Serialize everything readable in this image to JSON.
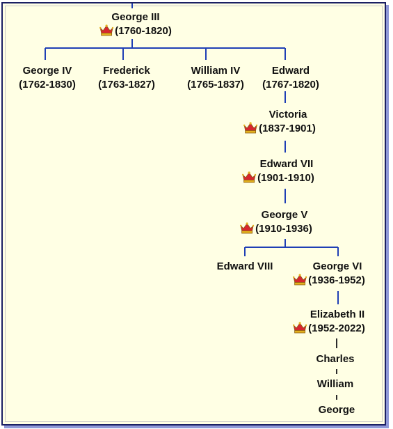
{
  "colors": {
    "background": "#ffffe4",
    "border": "#1a1f63",
    "shadow": "#8e98d8",
    "royal_line": "#1f3fb5",
    "succession_line": "#2b2b2b",
    "text": "#111111"
  },
  "legend_icon": "crown-icon",
  "people": {
    "george_iii": {
      "name": "George III",
      "dates": "(1760-1820)",
      "monarch": true
    },
    "george_iv": {
      "name": "George IV",
      "dates": "(1762-1830)",
      "monarch": false
    },
    "frederick": {
      "name": "Frederick",
      "dates": "(1763-1827)",
      "monarch": false
    },
    "william_iv": {
      "name": "William IV",
      "dates": "(1765-1837)",
      "monarch": false
    },
    "edward": {
      "name": "Edward",
      "dates": "(1767-1820)",
      "monarch": false
    },
    "victoria": {
      "name": "Victoria",
      "dates": "(1837-1901)",
      "monarch": true
    },
    "edward_vii": {
      "name": "Edward VII",
      "dates": "(1901-1910)",
      "monarch": true
    },
    "george_v": {
      "name": "George V",
      "dates": "(1910-1936)",
      "monarch": true
    },
    "edward_viii": {
      "name": "Edward VIII",
      "dates": "",
      "monarch": false
    },
    "george_vi": {
      "name": "George VI",
      "dates": "(1936-1952)",
      "monarch": true
    },
    "elizabeth_ii": {
      "name": "Elizabeth II",
      "dates": "(1952-2022)",
      "monarch": true
    },
    "charles": {
      "name": "Charles",
      "dates": "",
      "monarch": false
    },
    "william": {
      "name": "William",
      "dates": "",
      "monarch": false
    },
    "george": {
      "name": "George",
      "dates": "",
      "monarch": false
    }
  }
}
